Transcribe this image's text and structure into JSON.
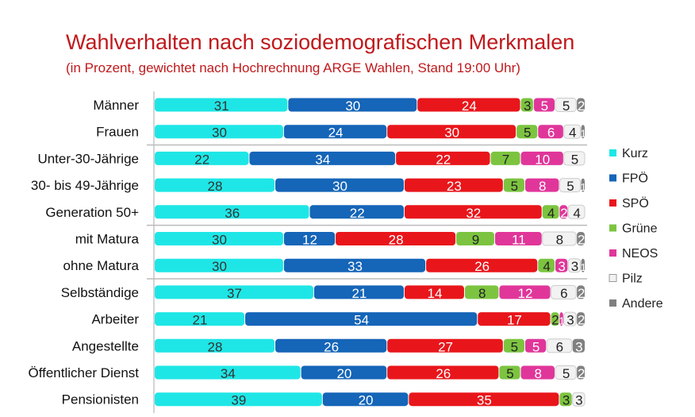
{
  "chart_data": {
    "type": "bar",
    "orientation": "horizontal",
    "stacked": true,
    "title": "Wahlverhalten nach soziodemografischen Merkmalen",
    "subtitle": "(in Prozent, gewichtet nach Hochrechnung ARGE Wahlen, Stand 19:00 Uhr)",
    "xlim": [
      0,
      100
    ],
    "legend_position": "right",
    "categories": [
      "Männer",
      "Frauen",
      "Unter-30-Jährige",
      "30- bis 49-Jährige",
      "Generation 50+",
      "mit Matura",
      "ohne Matura",
      "Selbständige",
      "Arbeiter",
      "Angestellte",
      "Öffentlicher Dienst",
      "Pensionisten"
    ],
    "series": [
      {
        "name": "Kurz",
        "color": "#1fe6e6",
        "values": [
          31,
          30,
          22,
          28,
          36,
          30,
          30,
          37,
          21,
          28,
          34,
          39
        ]
      },
      {
        "name": "FPÖ",
        "color": "#1565b8",
        "values": [
          30,
          24,
          34,
          30,
          22,
          12,
          33,
          21,
          54,
          26,
          20,
          20
        ]
      },
      {
        "name": "SPÖ",
        "color": "#e8161b",
        "values": [
          24,
          30,
          22,
          23,
          32,
          28,
          26,
          14,
          17,
          27,
          26,
          35
        ]
      },
      {
        "name": "Grüne",
        "color": "#7cc440",
        "values": [
          3,
          5,
          7,
          5,
          4,
          9,
          4,
          8,
          2,
          5,
          5,
          3
        ]
      },
      {
        "name": "NEOS",
        "color": "#e0369a",
        "values": [
          5,
          6,
          10,
          8,
          2,
          11,
          3,
          12,
          1,
          5,
          8,
          0
        ]
      },
      {
        "name": "Pilz",
        "color": "#f2f2f2",
        "values": [
          5,
          4,
          5,
          5,
          4,
          8,
          3,
          6,
          3,
          6,
          5,
          3
        ]
      },
      {
        "name": "Andere",
        "color": "#808080",
        "values": [
          2,
          1,
          0,
          1,
          0,
          2,
          1,
          2,
          2,
          3,
          2,
          0
        ]
      }
    ]
  }
}
